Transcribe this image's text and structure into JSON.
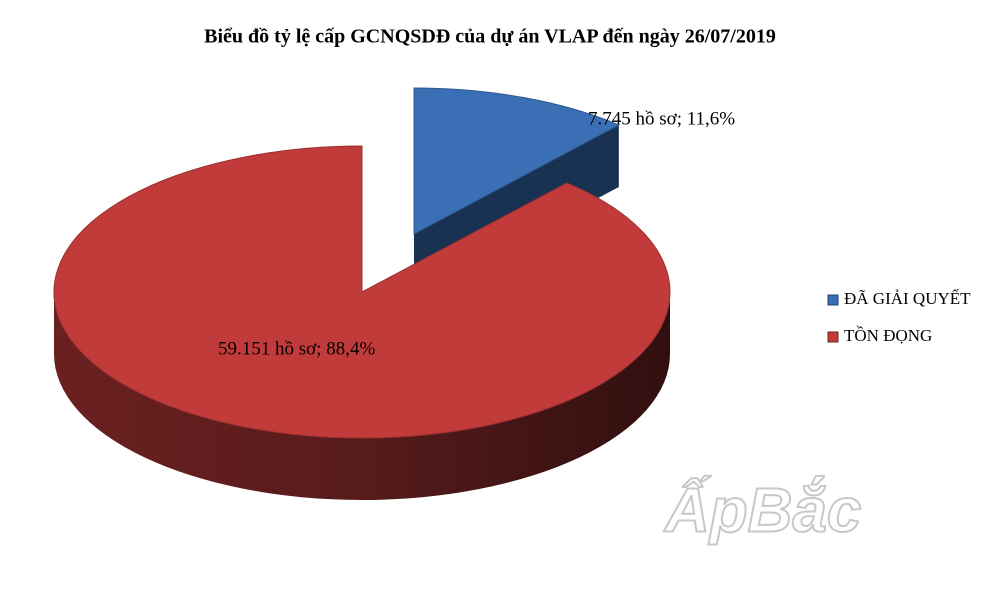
{
  "chart_data": {
    "type": "pie3d",
    "title": "Biểu đồ tỷ lệ cấp GCNQSDĐ của dự án VLAP đến ngày 26/07/2019",
    "categories": [
      "ĐÃ GIẢI QUYẾT",
      "TỒN ĐỌNG"
    ],
    "values": [
      7745,
      59151
    ],
    "value_labels": [
      "7.745 hồ sơ; 11,6%",
      "59.151 hồ sơ; 88,4%"
    ],
    "colors": [
      "#3a6fb5",
      "#c23b3b"
    ],
    "legend": "right",
    "watermark": "ẤpBắc"
  }
}
